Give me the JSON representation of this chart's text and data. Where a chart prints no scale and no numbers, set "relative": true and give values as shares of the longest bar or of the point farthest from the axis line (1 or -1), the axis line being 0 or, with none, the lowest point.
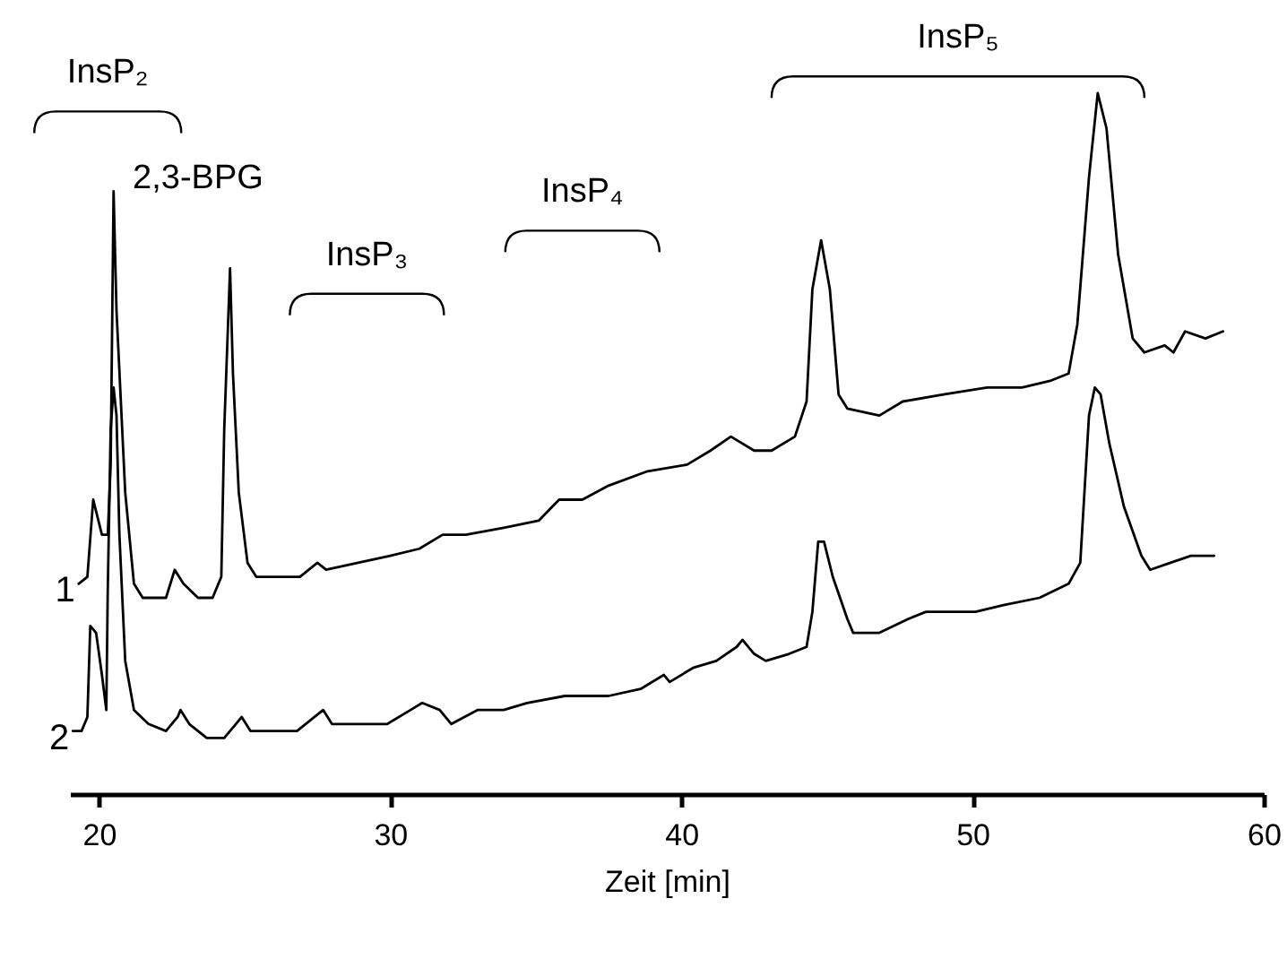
{
  "chart_data": {
    "type": "line",
    "xlabel": "Zeit [min]",
    "relative": true,
    "xlim": [
      19,
      60
    ],
    "xticks": [
      20,
      30,
      40,
      50,
      60
    ],
    "annotations": [
      "InsP₂",
      "2,3-BPG",
      "InsP₃",
      "InsP₄",
      "InsP₅"
    ],
    "series": [
      {
        "name": "1",
        "color": "#000000",
        "x": [
          19.3,
          19.6,
          19.8,
          20.1,
          20.3,
          20.4,
          20.5,
          20.6,
          20.9,
          21.2,
          21.5,
          22.1,
          22.3,
          22.6,
          22.9,
          23.4,
          23.9,
          24.2,
          24.3,
          24.5,
          24.6,
          24.8,
          25.1,
          25.4,
          26.5,
          26.9,
          27.5,
          27.8,
          28.9,
          30.0,
          31.0,
          31.8,
          32.6,
          33.9,
          35.1,
          35.8,
          36.2,
          36.6,
          37.5,
          38.8,
          40.2,
          41.0,
          41.7,
          42.5,
          43.1,
          43.9,
          44.3,
          44.5,
          44.8,
          45.1,
          45.4,
          45.7,
          46.8,
          47.6,
          49.0,
          50.5,
          51.7,
          52.7,
          53.3,
          53.6,
          54.0,
          54.3,
          54.6,
          55.0,
          55.5,
          55.9,
          56.6,
          56.9,
          57.3,
          58.0,
          58.6
        ],
        "values": [
          0.3,
          0.31,
          0.42,
          0.37,
          0.37,
          0.47,
          0.86,
          0.69,
          0.43,
          0.3,
          0.28,
          0.28,
          0.28,
          0.32,
          0.3,
          0.28,
          0.28,
          0.31,
          0.52,
          0.75,
          0.6,
          0.43,
          0.33,
          0.31,
          0.31,
          0.31,
          0.33,
          0.32,
          0.33,
          0.34,
          0.35,
          0.37,
          0.37,
          0.38,
          0.39,
          0.42,
          0.42,
          0.42,
          0.44,
          0.46,
          0.47,
          0.49,
          0.51,
          0.49,
          0.49,
          0.51,
          0.56,
          0.72,
          0.79,
          0.72,
          0.57,
          0.55,
          0.54,
          0.56,
          0.57,
          0.58,
          0.58,
          0.59,
          0.6,
          0.67,
          0.88,
          1.0,
          0.95,
          0.77,
          0.65,
          0.63,
          0.64,
          0.63,
          0.66,
          0.65,
          0.66
        ]
      },
      {
        "name": "2",
        "color": "#000000",
        "x": [
          19.1,
          19.4,
          19.6,
          19.7,
          19.9,
          20.1,
          20.25,
          20.3,
          20.4,
          20.5,
          20.6,
          20.7,
          20.9,
          21.2,
          21.7,
          22.3,
          22.7,
          22.8,
          23.1,
          23.7,
          24.3,
          24.7,
          24.9,
          25.2,
          26.2,
          26.8,
          27.4,
          27.7,
          28.0,
          28.9,
          29.9,
          30.7,
          31.1,
          31.7,
          32.1,
          33.0,
          33.9,
          34.7,
          36.0,
          36.5,
          37.5,
          38.6,
          39.4,
          39.6,
          40.4,
          41.2,
          41.9,
          42.1,
          42.5,
          42.9,
          43.7,
          44.3,
          44.5,
          44.7,
          44.9,
          45.2,
          45.7,
          45.9,
          46.8,
          47.8,
          48.4,
          49.0,
          50.1,
          51.1,
          52.3,
          53.3,
          53.7,
          54.0,
          54.2,
          54.4,
          54.7,
          55.2,
          55.8,
          56.1,
          56.8,
          57.5,
          57.9,
          58.3
        ],
        "values": [
          0.09,
          0.09,
          0.11,
          0.24,
          0.23,
          0.17,
          0.12,
          0.29,
          0.52,
          0.58,
          0.54,
          0.37,
          0.19,
          0.12,
          0.1,
          0.09,
          0.11,
          0.12,
          0.1,
          0.08,
          0.08,
          0.1,
          0.11,
          0.09,
          0.09,
          0.09,
          0.11,
          0.12,
          0.1,
          0.1,
          0.1,
          0.12,
          0.13,
          0.12,
          0.1,
          0.12,
          0.12,
          0.13,
          0.14,
          0.14,
          0.14,
          0.15,
          0.17,
          0.16,
          0.18,
          0.19,
          0.21,
          0.22,
          0.2,
          0.19,
          0.2,
          0.21,
          0.26,
          0.36,
          0.36,
          0.31,
          0.25,
          0.23,
          0.23,
          0.25,
          0.26,
          0.26,
          0.26,
          0.27,
          0.28,
          0.3,
          0.33,
          0.54,
          0.58,
          0.57,
          0.5,
          0.41,
          0.34,
          0.32,
          0.33,
          0.34,
          0.34,
          0.34
        ]
      }
    ]
  }
}
